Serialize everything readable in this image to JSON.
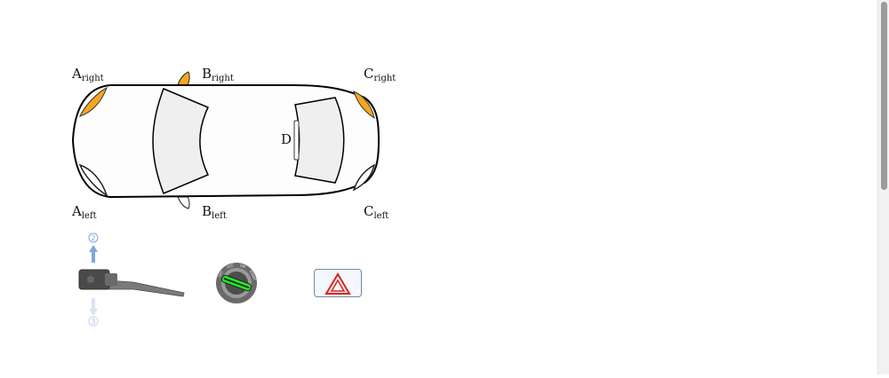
{
  "labels": {
    "a_right": {
      "main": "A",
      "sub": "right"
    },
    "b_right": {
      "main": "B",
      "sub": "right"
    },
    "c_right": {
      "main": "C",
      "sub": "right"
    },
    "a_left": {
      "main": "A",
      "sub": "left"
    },
    "b_left": {
      "main": "B",
      "sub": "left"
    },
    "c_left": {
      "main": "C",
      "sub": "left"
    },
    "d": {
      "main": "D"
    }
  },
  "turn_stalk": {
    "position_up": "2",
    "position_down": "3"
  },
  "ignition": {
    "marks": [
      "OFF",
      "ACC",
      "ON",
      "START"
    ]
  },
  "lamp_states": {
    "a_right": "on",
    "b_right": "on",
    "c_right": "on",
    "a_left": "off",
    "b_left": "off",
    "c_left": "off",
    "d": "off"
  },
  "colors": {
    "lamp_on": "#f5a623",
    "lamp_off": "#ffffff",
    "stalk_up_arrow": "#7ea8d8",
    "stalk_down_arrow": "#d6e4f3",
    "ignition_indicator": "#2ee52e",
    "hazard_triangle": "#e02020"
  }
}
